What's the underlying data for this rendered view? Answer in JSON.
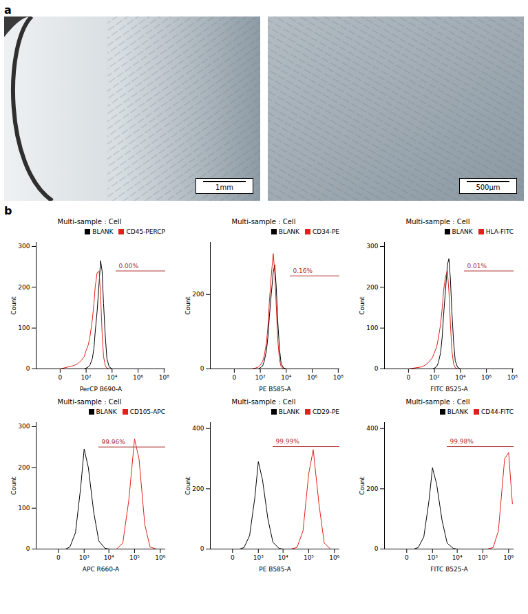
{
  "panel_labels": [
    "a",
    "b"
  ],
  "images": [
    {
      "scale_bar": "1mm"
    },
    {
      "scale_bar": "500μm"
    }
  ],
  "chart_data": [
    {
      "type": "line",
      "title": "Multi-sample : Cell",
      "x_label": "PerCP B690-A",
      "y_label": "Count",
      "grid": false,
      "legend": "top",
      "xlim": [
        -70,
        130000000
      ],
      "xticks": [
        0,
        {
          "value": 100,
          "label": "10²"
        },
        {
          "value": 10000,
          "label": "10⁴"
        },
        {
          "value": 1000000,
          "label": "10⁶"
        },
        {
          "value": 100000000,
          "label": "10⁸"
        }
      ],
      "ylim": [
        0,
        310
      ],
      "yticks": [
        0,
        100,
        200,
        300
      ],
      "x": [
        0,
        10,
        20,
        40,
        70,
        100,
        150,
        200,
        300,
        400,
        500,
        700,
        1000,
        1300,
        1700,
        2200,
        3000,
        4000,
        6000,
        10000
      ],
      "series": [
        {
          "name": "BLANK",
          "color": "#000000",
          "values": [
            0,
            0,
            0,
            0,
            0,
            2,
            5,
            10,
            25,
            50,
            90,
            140,
            210,
            265,
            240,
            160,
            80,
            25,
            5,
            0
          ]
        },
        {
          "name": "CD45-PERCP",
          "color": "#e0201b",
          "values": [
            0,
            8,
            12,
            20,
            30,
            45,
            60,
            80,
            120,
            160,
            200,
            235,
            240,
            180,
            90,
            30,
            8,
            2,
            0,
            0
          ]
        }
      ],
      "gate": {
        "range": [
          20000,
          130000000
        ],
        "y": 240,
        "text": "0.00%",
        "color": "#b03030"
      }
    },
    {
      "type": "line",
      "title": "Multi-sample : Cell",
      "x_label": "PE B585-A",
      "y_label": "Count",
      "grid": false,
      "legend": "top",
      "xlim": [
        -70,
        130000000
      ],
      "xticks": [
        0,
        {
          "value": 100,
          "label": "10²"
        },
        {
          "value": 10000,
          "label": "10⁴"
        },
        {
          "value": 1000000,
          "label": "10⁶"
        },
        {
          "value": 100000000,
          "label": "10⁸"
        }
      ],
      "ylim": [
        0,
        340
      ],
      "yticks": [
        0,
        200
      ],
      "x": [
        0,
        10,
        20,
        40,
        70,
        100,
        150,
        200,
        300,
        400,
        500,
        700,
        1000,
        1300,
        1700,
        2200,
        3000,
        4000,
        6000,
        10000
      ],
      "series": [
        {
          "name": "BLANK",
          "color": "#000000",
          "values": [
            0,
            0,
            0,
            0,
            0,
            3,
            8,
            20,
            50,
            90,
            140,
            200,
            260,
            280,
            220,
            130,
            55,
            15,
            3,
            0
          ]
        },
        {
          "name": "CD34-PE",
          "color": "#e0201b",
          "values": [
            0,
            0,
            0,
            2,
            5,
            10,
            20,
            35,
            70,
            120,
            180,
            250,
            310,
            260,
            170,
            80,
            25,
            6,
            1,
            0
          ]
        }
      ],
      "gate": {
        "range": [
          20000,
          130000000
        ],
        "y": 250,
        "text": "0.16%",
        "color": "#b03030"
      }
    },
    {
      "type": "line",
      "title": "Multi-sample : Cell",
      "x_label": "FITC B525-A",
      "y_label": "Count",
      "grid": false,
      "legend": "top",
      "xlim": [
        -70,
        130000000
      ],
      "xticks": [
        0,
        {
          "value": 100,
          "label": "10²"
        },
        {
          "value": 10000,
          "label": "10⁴"
        },
        {
          "value": 1000000,
          "label": "10⁶"
        },
        {
          "value": 100000000,
          "label": "10⁸"
        }
      ],
      "ylim": [
        0,
        310
      ],
      "yticks": [
        0,
        100,
        200,
        300
      ],
      "x": [
        0,
        10,
        20,
        40,
        70,
        100,
        150,
        200,
        300,
        400,
        500,
        700,
        1000,
        1300,
        1700,
        2200,
        3000,
        4000,
        6000,
        10000
      ],
      "series": [
        {
          "name": "BLANK",
          "color": "#000000",
          "values": [
            0,
            0,
            0,
            0,
            0,
            2,
            6,
            15,
            40,
            80,
            130,
            190,
            255,
            270,
            220,
            140,
            65,
            20,
            4,
            0
          ]
        },
        {
          "name": "HLA-FITC",
          "color": "#e0201b",
          "values": [
            0,
            5,
            10,
            18,
            28,
            40,
            55,
            75,
            110,
            150,
            190,
            225,
            240,
            190,
            110,
            45,
            12,
            3,
            0,
            0
          ]
        }
      ],
      "gate": {
        "range": [
          20000,
          130000000
        ],
        "y": 240,
        "text": "0.01%",
        "color": "#b03030"
      }
    },
    {
      "type": "line",
      "title": "Multi-sample : Cell",
      "x_label": "APC R660-A",
      "y_label": "Count",
      "grid": false,
      "legend": "top",
      "xlim": [
        -700,
        1600000
      ],
      "xticks": [
        0,
        {
          "value": 1000,
          "label": "10³"
        },
        {
          "value": 10000,
          "label": "10⁴"
        },
        {
          "value": 100000,
          "label": "10⁵"
        },
        {
          "value": 1000000,
          "label": "10⁶"
        }
      ],
      "ylim": [
        0,
        310
      ],
      "yticks": [
        0,
        100,
        200,
        300
      ],
      "x": [
        0,
        100,
        200,
        400,
        700,
        1000,
        1500,
        2500,
        4000,
        7000,
        10000,
        20000,
        35000,
        60000,
        100000,
        150000,
        250000,
        400000,
        700000,
        1000000,
        1400000
      ],
      "series": [
        {
          "name": "BLANK",
          "color": "#000000",
          "values": [
            0,
            0,
            5,
            40,
            150,
            245,
            200,
            90,
            20,
            2,
            0,
            0,
            0,
            0,
            0,
            0,
            0,
            0,
            0,
            0,
            0
          ]
        },
        {
          "name": "CD105-APC",
          "color": "#e0201b",
          "values": [
            0,
            0,
            0,
            0,
            0,
            0,
            0,
            0,
            0,
            0,
            0,
            0,
            15,
            120,
            270,
            220,
            60,
            5,
            0,
            0,
            0
          ]
        }
      ],
      "gate": {
        "range": [
          4000,
          1600000
        ],
        "y": 250,
        "text": "99.96%",
        "color": "#b03030"
      }
    },
    {
      "type": "line",
      "title": "Multi-sample : Cell",
      "x_label": "PE B585-A",
      "y_label": "Count",
      "grid": false,
      "legend": "top",
      "xlim": [
        -700,
        1600000
      ],
      "xticks": [
        0,
        {
          "value": 1000,
          "label": "10³"
        },
        {
          "value": 10000,
          "label": "10⁴"
        },
        {
          "value": 100000,
          "label": "10⁵"
        },
        {
          "value": 1000000,
          "label": "10⁶"
        }
      ],
      "ylim": [
        0,
        420
      ],
      "yticks": [
        0,
        200,
        400
      ],
      "x": [
        0,
        100,
        200,
        400,
        700,
        1000,
        1500,
        2500,
        4000,
        7000,
        10000,
        20000,
        35000,
        60000,
        100000,
        150000,
        250000,
        400000,
        700000,
        1000000,
        1400000
      ],
      "series": [
        {
          "name": "BLANK",
          "color": "#000000",
          "values": [
            0,
            0,
            5,
            45,
            170,
            290,
            230,
            100,
            22,
            2,
            0,
            0,
            0,
            0,
            0,
            0,
            0,
            0,
            0,
            0,
            0
          ]
        },
        {
          "name": "CD29-PE",
          "color": "#e0201b",
          "values": [
            0,
            0,
            0,
            0,
            0,
            0,
            0,
            0,
            0,
            0,
            0,
            0,
            5,
            60,
            250,
            330,
            150,
            20,
            0,
            0,
            0
          ]
        }
      ],
      "gate": {
        "range": [
          4000,
          1600000
        ],
        "y": 340,
        "text": "99.99%",
        "color": "#b03030"
      }
    },
    {
      "type": "line",
      "title": "Multi-sample : Cell",
      "x_label": "FITC B525-A",
      "y_label": "Count",
      "grid": false,
      "legend": "top",
      "xlim": [
        -700,
        1600000
      ],
      "xticks": [
        0,
        {
          "value": 1000,
          "label": "10³"
        },
        {
          "value": 10000,
          "label": "10⁴"
        },
        {
          "value": 100000,
          "label": "10⁵"
        },
        {
          "value": 1000000,
          "label": "10⁶"
        }
      ],
      "ylim": [
        0,
        420
      ],
      "yticks": [
        0,
        200,
        400
      ],
      "x": [
        0,
        100,
        200,
        400,
        700,
        1000,
        1500,
        2500,
        4000,
        7000,
        10000,
        20000,
        35000,
        60000,
        100000,
        150000,
        250000,
        400000,
        700000,
        1000000,
        1400000
      ],
      "series": [
        {
          "name": "BLANK",
          "color": "#000000",
          "values": [
            0,
            0,
            5,
            40,
            160,
            270,
            215,
            95,
            20,
            2,
            0,
            0,
            0,
            0,
            0,
            0,
            0,
            0,
            0,
            0,
            0
          ]
        },
        {
          "name": "CD44-FITC",
          "color": "#e0201b",
          "values": [
            0,
            0,
            0,
            0,
            0,
            0,
            0,
            0,
            0,
            0,
            0,
            0,
            0,
            0,
            0,
            0,
            5,
            60,
            300,
            320,
            150
          ]
        }
      ],
      "gate": {
        "range": [
          4000,
          1600000
        ],
        "y": 340,
        "text": "99.98%",
        "color": "#b03030"
      }
    }
  ]
}
